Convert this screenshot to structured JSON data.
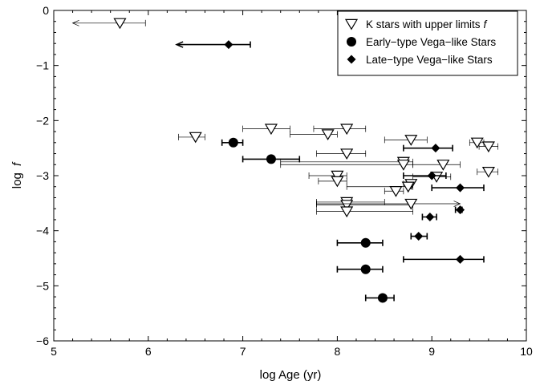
{
  "chart_data": {
    "type": "scatter",
    "xlabel": "log Age (yr)",
    "ylabel_main": "log",
    "ylabel_italic": "f",
    "xlim": [
      5,
      10
    ],
    "ylim": [
      -6,
      0
    ],
    "xticks": [
      "5",
      "6",
      "7",
      "8",
      "9",
      "10"
    ],
    "yticks": [
      "0",
      "−1",
      "−2",
      "−3",
      "−4",
      "−5",
      "−6"
    ],
    "grid": false,
    "legend_position": "top-right",
    "series": [
      {
        "name": "K stars with upper limits",
        "name_suffix": "f",
        "marker": "open-triangle-down",
        "color": "#000000",
        "points": [
          {
            "x": 5.7,
            "y": -0.23,
            "xlo": 5.2,
            "xhi": 5.97,
            "upper_limit_arrow": true
          },
          {
            "x": 6.5,
            "y": -2.3,
            "xlo": 6.32,
            "xhi": 6.6
          },
          {
            "x": 7.3,
            "y": -2.15,
            "xlo": 7.0,
            "xhi": 7.5
          },
          {
            "x": 7.9,
            "y": -2.25,
            "xlo": 7.5,
            "xhi": 8.0
          },
          {
            "x": 8.1,
            "y": -2.15,
            "xlo": 7.75,
            "xhi": 8.3
          },
          {
            "x": 8.1,
            "y": -2.6,
            "xlo": 7.78,
            "xhi": 8.3
          },
          {
            "x": 8.78,
            "y": -2.35,
            "xlo": 8.5,
            "xhi": 8.95
          },
          {
            "x": 8.7,
            "y": -2.75,
            "xlo": 7.4,
            "xhi": 8.8
          },
          {
            "x": 8.7,
            "y": -2.8,
            "xlo": 7.4,
            "xhi": 8.8
          },
          {
            "x": 9.12,
            "y": -2.8,
            "xlo": 8.8,
            "xhi": 9.3
          },
          {
            "x": 9.48,
            "y": -2.4,
            "xlo": 9.4,
            "xhi": 9.55
          },
          {
            "x": 9.6,
            "y": -2.47,
            "xlo": 9.5,
            "xhi": 9.7
          },
          {
            "x": 9.6,
            "y": -2.93,
            "xlo": 9.48,
            "xhi": 9.7
          },
          {
            "x": 8.0,
            "y": -3.0,
            "xlo": 7.7,
            "xhi": 8.1
          },
          {
            "x": 8.0,
            "y": -3.1,
            "xlo": 7.8,
            "xhi": 8.1
          },
          {
            "x": 9.05,
            "y": -3.02,
            "xlo": 8.8,
            "xhi": 9.2
          },
          {
            "x": 8.78,
            "y": -3.15,
            "xlo": 8.7,
            "xhi": 8.8
          },
          {
            "x": 8.75,
            "y": -3.2,
            "xlo": 8.1,
            "xhi": 8.8
          },
          {
            "x": 8.62,
            "y": -3.28,
            "xlo": 8.5,
            "xhi": 8.7
          },
          {
            "x": 8.1,
            "y": -3.48,
            "xlo": 7.78,
            "xhi": 8.5
          },
          {
            "x": 8.1,
            "y": -3.53,
            "xlo": 7.78,
            "xhi": 8.8
          },
          {
            "x": 8.78,
            "y": -3.51,
            "xlo": 7.78,
            "xhi": 9.3,
            "arrow_right": true
          },
          {
            "x": 8.1,
            "y": -3.65,
            "xlo": 7.78,
            "xhi": 8.8
          }
        ]
      },
      {
        "name": "Early−type Vega−like Stars",
        "marker": "filled-circle",
        "color": "#000000",
        "points": [
          {
            "x": 6.9,
            "y": -2.4,
            "xlo": 6.78,
            "xhi": 7.0
          },
          {
            "x": 7.3,
            "y": -2.7,
            "xlo": 7.0,
            "xhi": 7.6
          },
          {
            "x": 8.3,
            "y": -4.22,
            "xlo": 8.0,
            "xhi": 8.48
          },
          {
            "x": 8.3,
            "y": -4.7,
            "xlo": 8.0,
            "xhi": 8.48
          },
          {
            "x": 8.48,
            "y": -5.22,
            "xlo": 8.3,
            "xhi": 8.6
          }
        ]
      },
      {
        "name": "Late−type Vega−like Stars",
        "marker": "filled-diamond",
        "color": "#000000",
        "points": [
          {
            "x": 6.85,
            "y": -0.62,
            "xlo": 6.3,
            "xhi": 7.08,
            "upper_limit_arrow": true
          },
          {
            "x": 9.04,
            "y": -2.5,
            "xlo": 8.7,
            "xhi": 9.22
          },
          {
            "x": 9.0,
            "y": -3.0,
            "xlo": 8.7,
            "xhi": 9.15
          },
          {
            "x": 9.3,
            "y": -3.22,
            "xlo": 9.0,
            "xhi": 9.55
          },
          {
            "x": 9.3,
            "y": -3.62,
            "xlo": 9.25,
            "xhi": 9.32
          },
          {
            "x": 8.98,
            "y": -3.75,
            "xlo": 8.9,
            "xhi": 9.05
          },
          {
            "x": 8.86,
            "y": -4.1,
            "xlo": 8.78,
            "xhi": 8.95
          },
          {
            "x": 9.3,
            "y": -4.52,
            "xlo": 8.7,
            "xhi": 9.55
          }
        ]
      }
    ]
  }
}
